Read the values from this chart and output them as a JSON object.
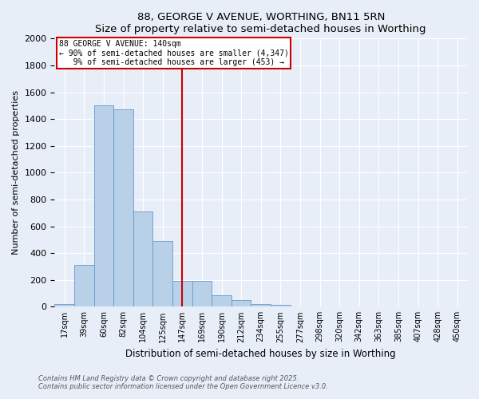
{
  "title": "88, GEORGE V AVENUE, WORTHING, BN11 5RN",
  "subtitle": "Size of property relative to semi-detached houses in Worthing",
  "xlabel": "Distribution of semi-detached houses by size in Worthing",
  "ylabel": "Number of semi-detached properties",
  "bin_labels": [
    "17sqm",
    "39sqm",
    "60sqm",
    "82sqm",
    "104sqm",
    "125sqm",
    "147sqm",
    "169sqm",
    "190sqm",
    "212sqm",
    "234sqm",
    "255sqm",
    "277sqm",
    "298sqm",
    "320sqm",
    "342sqm",
    "363sqm",
    "385sqm",
    "407sqm",
    "428sqm",
    "450sqm"
  ],
  "bar_values": [
    20,
    310,
    1500,
    1470,
    710,
    490,
    195,
    195,
    85,
    50,
    20,
    15,
    0,
    0,
    0,
    0,
    0,
    0,
    0,
    0,
    0
  ],
  "bar_color": "#b8d0e8",
  "bar_edge_color": "#6699cc",
  "vline_x_idx": 6,
  "vline_color": "#cc0000",
  "annotation_line1": "88 GEORGE V AVENUE: 140sqm",
  "annotation_line2": "← 90% of semi-detached houses are smaller (4,347)",
  "annotation_line3": "   9% of semi-detached houses are larger (453) →",
  "annotation_box_color": "#cc0000",
  "ylim": [
    0,
    2000
  ],
  "yticks": [
    0,
    200,
    400,
    600,
    800,
    1000,
    1200,
    1400,
    1600,
    1800,
    2000
  ],
  "footnote1": "Contains HM Land Registry data © Crown copyright and database right 2025.",
  "footnote2": "Contains public sector information licensed under the Open Government Licence v3.0.",
  "bg_color": "#e8eef8",
  "plot_bg_color": "#e8eef8"
}
